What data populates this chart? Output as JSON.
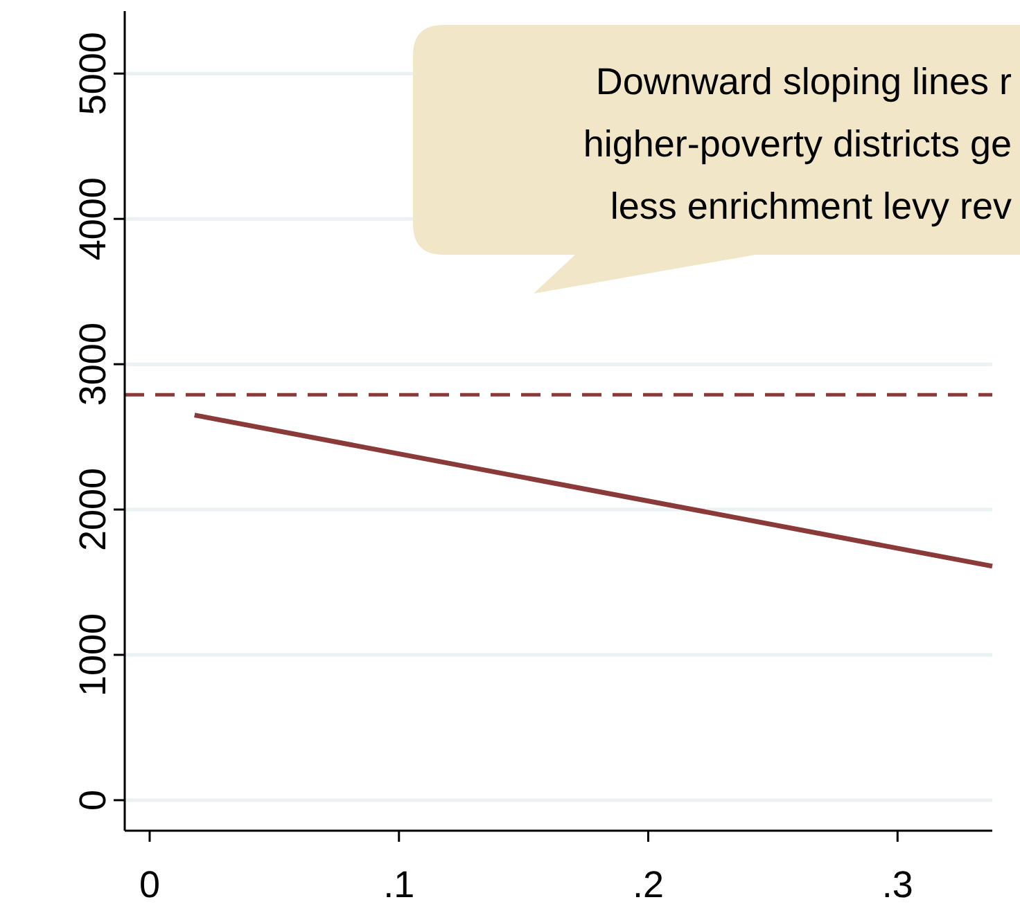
{
  "chart_data": {
    "type": "line",
    "x": [
      0.018,
      0.338
    ],
    "series": [
      {
        "color": "#8b3a3a",
        "values": [
          2650,
          1610
        ]
      }
    ],
    "xlim": [
      -0.01,
      0.338
    ],
    "ylim": [
      -210,
      5430
    ],
    "xticks": [
      0,
      {
        "value": 0.1,
        "label": ".1"
      },
      {
        "value": 0.2,
        "label": ".2"
      },
      {
        "value": 0.3,
        "label": ".3"
      }
    ],
    "yticks": [
      0,
      1000,
      2000,
      3000,
      4000,
      5000
    ],
    "ref_lines": [
      {
        "axis": "y",
        "value": 2790,
        "color": "#8b3a3a",
        "line_style": "dashed"
      }
    ],
    "grid": "y",
    "line_style": "solid",
    "annotations": [
      "Downward sloping lines r",
      "higher-poverty districts ge",
      "less enrichment levy rev"
    ]
  }
}
